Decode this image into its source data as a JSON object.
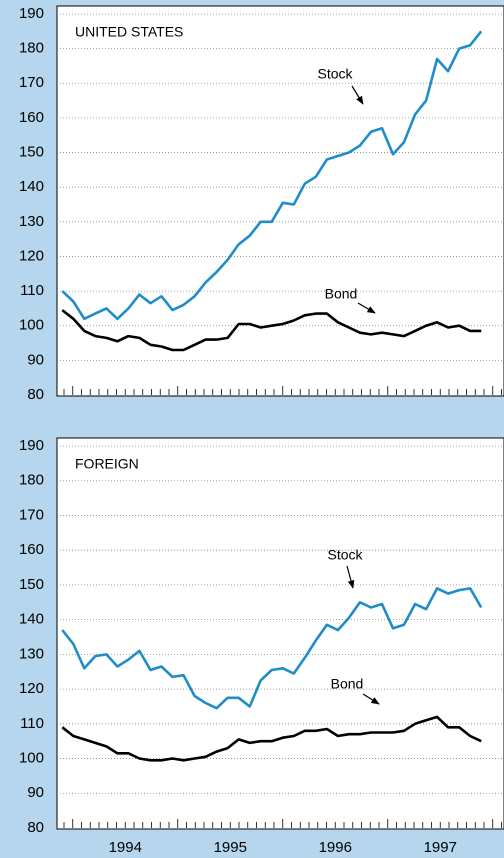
{
  "chart_data": [
    {
      "type": "line",
      "title": "UNITED STATES",
      "x": [
        1993.9,
        1994.005,
        1994.11,
        1994.215,
        1994.32,
        1994.425,
        1994.53,
        1994.635,
        1994.74,
        1994.845,
        1994.95,
        1995.055,
        1995.16,
        1995.265,
        1995.37,
        1995.475,
        1995.58,
        1995.685,
        1995.79,
        1995.895,
        1996.0,
        1996.105,
        1996.21,
        1996.315,
        1996.42,
        1996.525,
        1996.63,
        1996.735,
        1996.84,
        1996.945,
        1997.05,
        1997.155,
        1997.26,
        1997.365,
        1997.47,
        1997.575,
        1997.68,
        1997.785,
        1997.89
      ],
      "series": [
        {
          "name": "Stock",
          "color": "#1f8dc8",
          "values": [
            110,
            107,
            102,
            103.5,
            105,
            102,
            105,
            109,
            106.5,
            108.5,
            104.5,
            106,
            108.5,
            112.5,
            115.5,
            119,
            123.5,
            126,
            130,
            130,
            135.5,
            135,
            141,
            143,
            148,
            149,
            150,
            152,
            156,
            157,
            149.5,
            153,
            161,
            165,
            177,
            173.5,
            180,
            181,
            185
          ]
        },
        {
          "name": "Bond",
          "color": "#000000",
          "values": [
            104.5,
            102,
            98.5,
            97,
            96.5,
            95.5,
            97,
            96.5,
            94.5,
            94,
            93,
            93,
            94.5,
            96,
            96,
            96.5,
            100.5,
            100.5,
            99.5,
            100,
            100.5,
            101.5,
            103,
            103.5,
            103.5,
            101,
            99.5,
            98,
            97.5,
            98,
            97.5,
            97,
            98.5,
            100,
            101,
            99.5,
            100,
            98.5,
            98.5
          ]
        }
      ],
      "xlim": [
        1993.85,
        1998.1
      ],
      "ylim": [
        80,
        190
      ],
      "yticks": [
        80,
        90,
        100,
        110,
        120,
        130,
        140,
        150,
        160,
        170,
        180,
        190
      ],
      "grid": true
    },
    {
      "type": "line",
      "title": "FOREIGN",
      "x": [
        1993.9,
        1994.005,
        1994.11,
        1994.215,
        1994.32,
        1994.425,
        1994.53,
        1994.635,
        1994.74,
        1994.845,
        1994.95,
        1995.055,
        1995.16,
        1995.265,
        1995.37,
        1995.475,
        1995.58,
        1995.685,
        1995.79,
        1995.895,
        1996.0,
        1996.105,
        1996.21,
        1996.315,
        1996.42,
        1996.525,
        1996.63,
        1996.735,
        1996.84,
        1996.945,
        1997.05,
        1997.155,
        1997.26,
        1997.365,
        1997.47,
        1997.575,
        1997.68,
        1997.785,
        1997.89
      ],
      "series": [
        {
          "name": "Stock",
          "color": "#1f8dc8",
          "values": [
            137,
            133,
            126,
            129.5,
            130,
            126.5,
            128.5,
            131,
            125.5,
            126.5,
            123.5,
            124,
            118,
            116,
            114.5,
            117.5,
            117.5,
            115,
            122.5,
            125.5,
            126,
            124.5,
            129,
            134,
            138.5,
            137,
            140.5,
            145,
            143.5,
            144.5,
            137.5,
            138.5,
            144.5,
            143,
            149,
            147.5,
            148.5,
            149,
            143.5
          ]
        },
        {
          "name": "Bond",
          "color": "#000000",
          "values": [
            109,
            106.5,
            105.5,
            104.5,
            103.5,
            101.5,
            101.5,
            100,
            99.5,
            99.5,
            100,
            99.5,
            100,
            100.5,
            102,
            103,
            105.5,
            104.5,
            105,
            105,
            106,
            106.5,
            108,
            108,
            108.5,
            106.5,
            107,
            107,
            107.5,
            107.5,
            107.5,
            108,
            110,
            111,
            112,
            109,
            109,
            106.5,
            105
          ]
        }
      ],
      "xlim": [
        1993.85,
        1998.1
      ],
      "xticks": [
        {
          "value": 1994.5,
          "label": "1994"
        },
        {
          "value": 1995.5,
          "label": "1995"
        },
        {
          "value": 1996.5,
          "label": "1996"
        },
        {
          "value": 1997.5,
          "label": "1997"
        }
      ],
      "ylim": [
        80,
        190
      ],
      "yticks": [
        80,
        90,
        100,
        110,
        120,
        130,
        140,
        150,
        160,
        170,
        180,
        190
      ],
      "grid": true
    }
  ]
}
